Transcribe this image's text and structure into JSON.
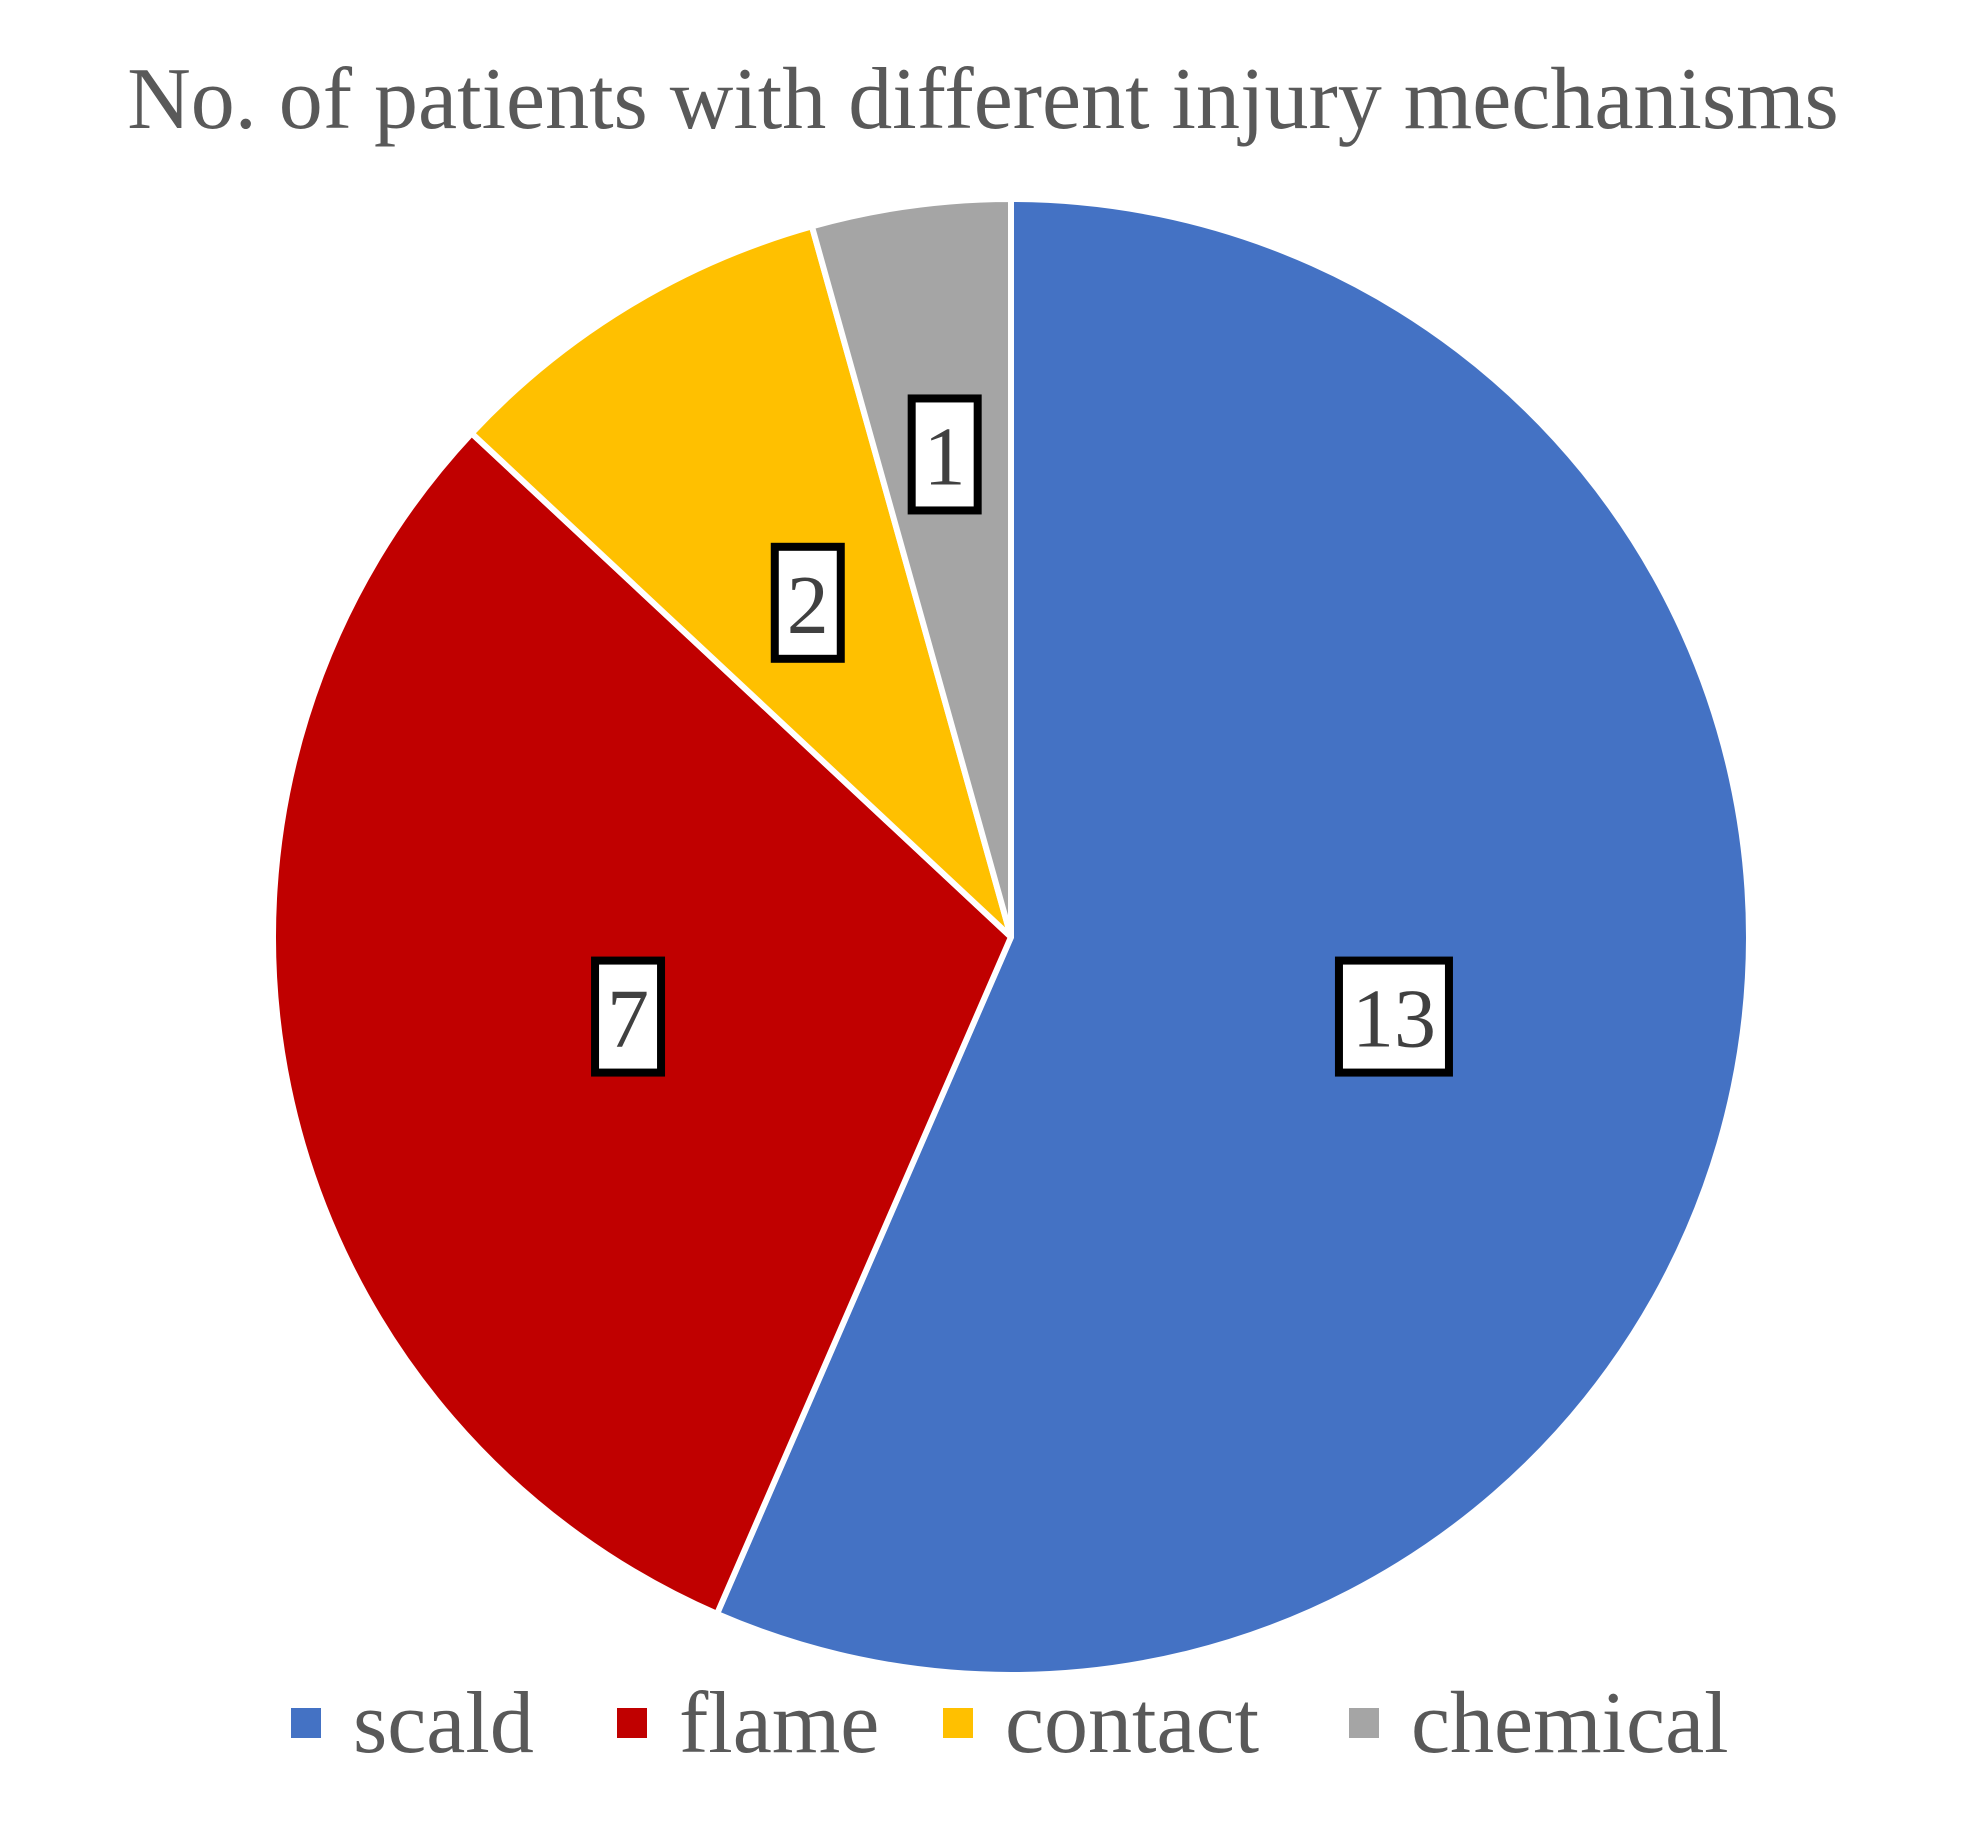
{
  "chart_data": {
    "type": "pie",
    "title": "No. of patients with different injury mechanisms",
    "categories": [
      "scald",
      "flame",
      "contact",
      "chemical"
    ],
    "values": [
      13,
      7,
      2,
      1
    ],
    "colors": [
      "#4472C4",
      "#C00000",
      "#FFC000",
      "#A5A5A5"
    ],
    "data_labels": [
      "13",
      "7",
      "2",
      "1"
    ],
    "legend_position": "bottom",
    "start_angle": "12 o'clock",
    "direction": "clockwise"
  }
}
